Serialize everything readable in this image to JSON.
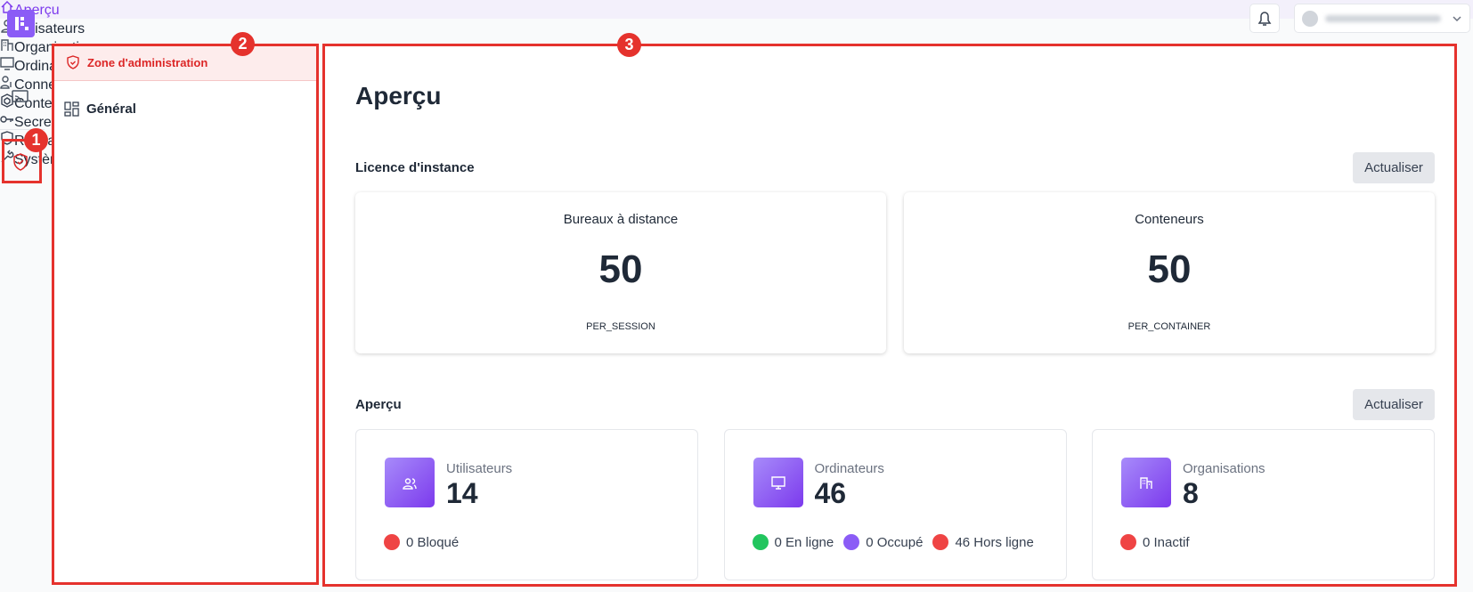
{
  "annotations": [
    "1",
    "2",
    "3"
  ],
  "sidebar": {
    "header": "Zone d'administration",
    "section": "Général",
    "items": [
      "Aperçu",
      "Utilisateurs",
      "Organisations",
      "Ordinateurs",
      "Connecteurs SSO"
    ],
    "groups": [
      "Conteneurs & Stations de travail",
      "Secrets",
      "Réseau & Sécurité",
      "Système"
    ]
  },
  "main": {
    "title": "Aperçu",
    "license": {
      "title": "Licence d'instance",
      "button": "Actualiser",
      "cards": [
        {
          "label": "Bureaux à distance",
          "value": 50,
          "mode": "PER_SESSION"
        },
        {
          "label": "Conteneurs",
          "value": 50,
          "mode": "PER_CONTAINER"
        }
      ]
    },
    "overview": {
      "title": "Aperçu",
      "button": "Actualiser",
      "cards": [
        {
          "label": "Utilisateurs",
          "value": 14,
          "statuses": [
            {
              "text": "0 Bloqué",
              "color": "#ef4444"
            }
          ]
        },
        {
          "label": "Ordinateurs",
          "value": 46,
          "statuses": [
            {
              "text": "0 En ligne",
              "color": "#22c55e"
            },
            {
              "text": "0 Occupé",
              "color": "#8b5cf6"
            },
            {
              "text": "46 Hors ligne",
              "color": "#ef4444"
            }
          ]
        },
        {
          "label": "Organisations",
          "value": 8,
          "statuses": [
            {
              "text": "0 Inactif",
              "color": "#ef4444"
            }
          ]
        }
      ]
    }
  }
}
